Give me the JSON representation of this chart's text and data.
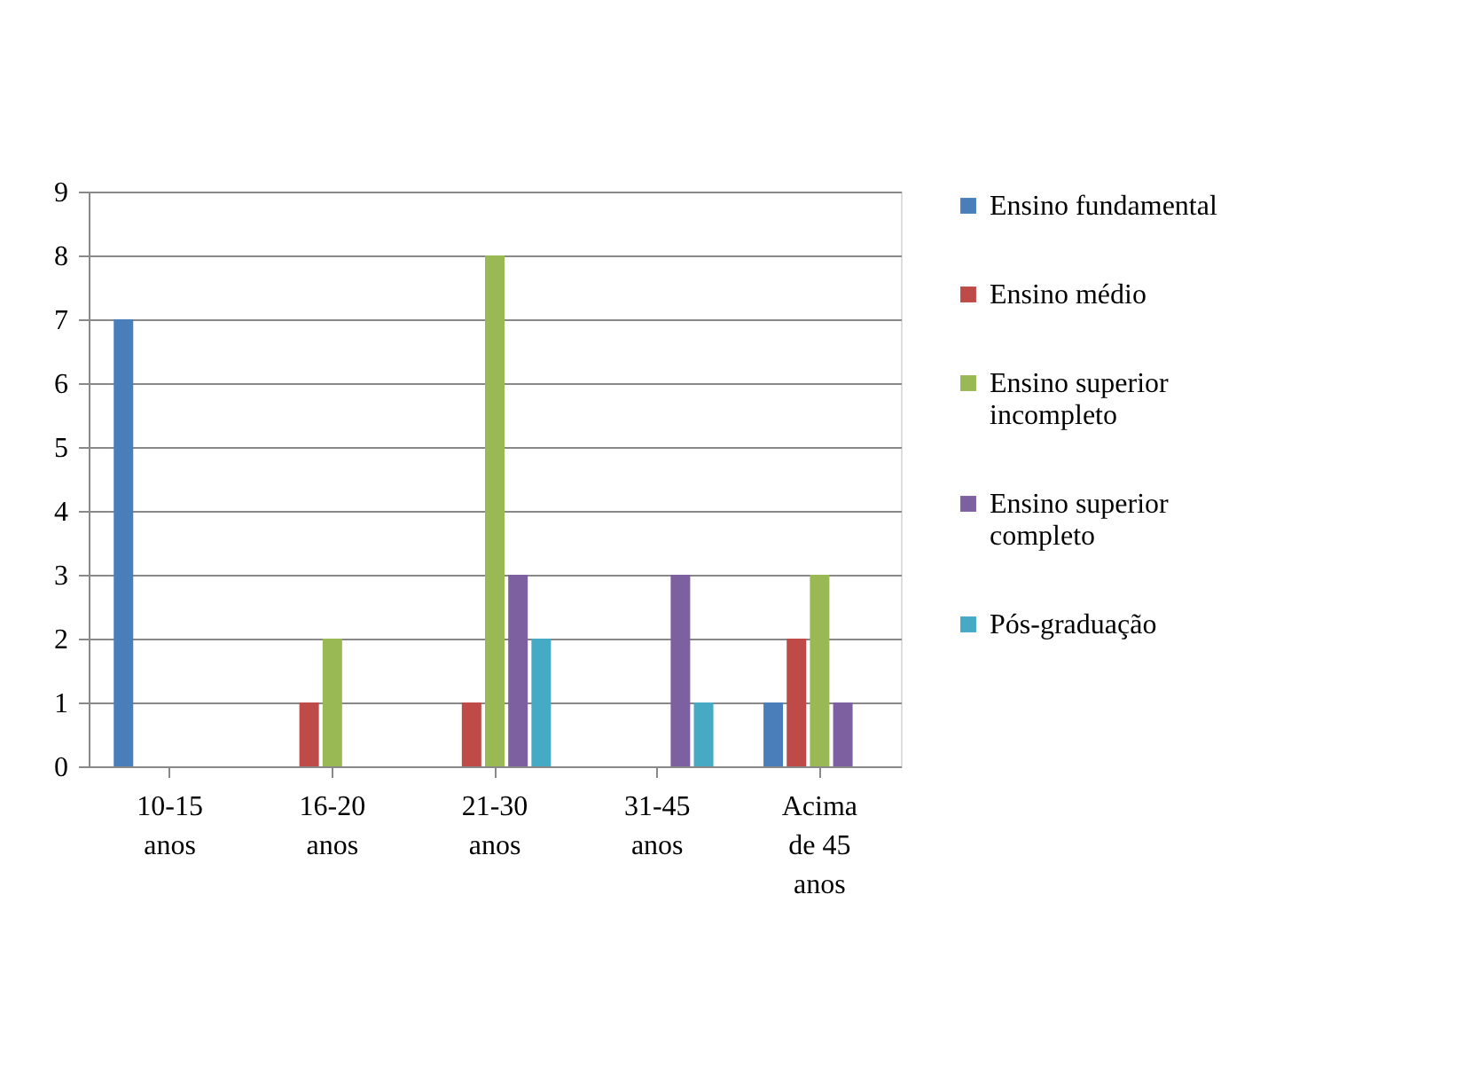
{
  "chart_data": {
    "type": "bar",
    "categories": [
      "10-15\nanos",
      "16-20\nanos",
      "21-30\nanos",
      "31-45\nanos",
      "Acima\nde 45\nanos"
    ],
    "series": [
      {
        "name": "Ensino fundamental",
        "color": "#4a7ebb",
        "values": [
          7,
          0,
          0,
          0,
          1
        ]
      },
      {
        "name": "Ensino médio",
        "color": "#be4b48",
        "values": [
          0,
          1,
          1,
          0,
          2
        ]
      },
      {
        "name": "Ensino superior\nincompleto",
        "color": "#98b954",
        "values": [
          0,
          2,
          8,
          0,
          3
        ]
      },
      {
        "name": "Ensino superior\ncompleto",
        "color": "#7d60a0",
        "values": [
          0,
          0,
          3,
          3,
          1
        ]
      },
      {
        "name": "Pós-graduação",
        "color": "#46aac5",
        "values": [
          0,
          0,
          2,
          1,
          0
        ]
      }
    ],
    "ylim": [
      0,
      9
    ],
    "yticks": [
      0,
      1,
      2,
      3,
      4,
      5,
      6,
      7,
      8,
      9
    ],
    "grid": "y",
    "legend": "right"
  }
}
